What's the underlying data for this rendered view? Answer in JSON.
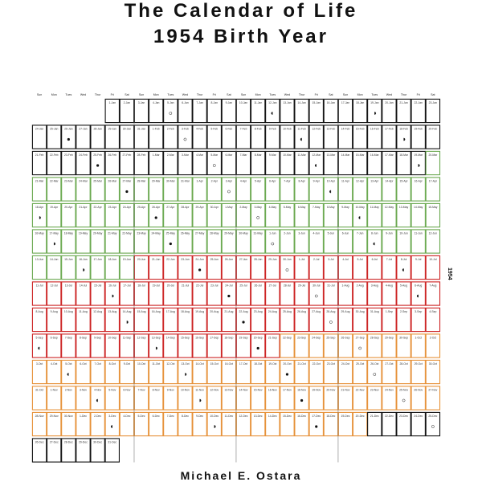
{
  "title_line_1": "The Calendar of Life",
  "title_line_2": "1954 Birth Year",
  "author": "Michael E. Ostara",
  "year_label": "1954",
  "year": 1954,
  "day_headers": [
    "Sun",
    "Mon",
    "Tues",
    "Wed",
    "Thur",
    "Fri",
    "Sat",
    "Sun",
    "Mon",
    "Tues",
    "Wed",
    "Thur",
    "Fri",
    "Sat",
    "Sun",
    "Mon",
    "Tues",
    "Wed",
    "Thur",
    "Fri",
    "Sat",
    "Sun",
    "Mon",
    "Tues",
    "Wed",
    "Thur",
    "Fri",
    "Sat"
  ],
  "month_abbr": [
    "Jan",
    "Feb",
    "Mar",
    "Apr",
    "May",
    "Jun",
    "Jul",
    "Aug",
    "Sep",
    "Oct",
    "Nov",
    "Dec"
  ],
  "season_colors": {
    "winter": "#111111",
    "spring": "#6aa84f",
    "summer": "#cc2222",
    "autumn": "#e69138"
  },
  "moon_phases": [
    {
      "date": "1954-01-05",
      "phase": "full"
    },
    {
      "date": "1954-01-12",
      "phase": "last"
    },
    {
      "date": "1954-01-19",
      "phase": "first"
    },
    {
      "date": "1954-01-26",
      "phase": "new"
    },
    {
      "date": "1954-02-03",
      "phase": "full"
    },
    {
      "date": "1954-02-11",
      "phase": "last"
    },
    {
      "date": "1954-02-18",
      "phase": "first"
    },
    {
      "date": "1954-02-25",
      "phase": "new"
    },
    {
      "date": "1954-03-05",
      "phase": "full"
    },
    {
      "date": "1954-03-12",
      "phase": "last"
    },
    {
      "date": "1954-03-19",
      "phase": "first"
    },
    {
      "date": "1954-03-27",
      "phase": "new"
    },
    {
      "date": "1954-04-03",
      "phase": "full"
    },
    {
      "date": "1954-04-10",
      "phase": "last"
    },
    {
      "date": "1954-04-18",
      "phase": "first"
    },
    {
      "date": "1954-04-26",
      "phase": "new"
    },
    {
      "date": "1954-05-03",
      "phase": "full"
    },
    {
      "date": "1954-05-10",
      "phase": "last"
    },
    {
      "date": "1954-05-17",
      "phase": "first"
    },
    {
      "date": "1954-05-25",
      "phase": "new"
    },
    {
      "date": "1954-06-01",
      "phase": "full"
    },
    {
      "date": "1954-06-08",
      "phase": "last"
    },
    {
      "date": "1954-06-16",
      "phase": "first"
    },
    {
      "date": "1954-06-24",
      "phase": "new"
    },
    {
      "date": "1954-06-30",
      "phase": "full"
    },
    {
      "date": "1954-07-08",
      "phase": "last"
    },
    {
      "date": "1954-07-16",
      "phase": "first"
    },
    {
      "date": "1954-07-24",
      "phase": "new"
    },
    {
      "date": "1954-07-30",
      "phase": "full"
    },
    {
      "date": "1954-08-06",
      "phase": "last"
    },
    {
      "date": "1954-08-14",
      "phase": "first"
    },
    {
      "date": "1954-08-22",
      "phase": "new"
    },
    {
      "date": "1954-08-28",
      "phase": "full"
    },
    {
      "date": "1954-09-05",
      "phase": "last"
    },
    {
      "date": "1954-09-13",
      "phase": "first"
    },
    {
      "date": "1954-09-20",
      "phase": "new"
    },
    {
      "date": "1954-09-27",
      "phase": "full"
    },
    {
      "date": "1954-10-05",
      "phase": "last"
    },
    {
      "date": "1954-10-13",
      "phase": "first"
    },
    {
      "date": "1954-10-20",
      "phase": "new"
    },
    {
      "date": "1954-10-26",
      "phase": "full"
    },
    {
      "date": "1954-11-04",
      "phase": "last"
    },
    {
      "date": "1954-11-11",
      "phase": "first"
    },
    {
      "date": "1954-11-18",
      "phase": "new"
    },
    {
      "date": "1954-11-25",
      "phase": "full"
    },
    {
      "date": "1954-12-03",
      "phase": "last"
    },
    {
      "date": "1954-12-10",
      "phase": "first"
    },
    {
      "date": "1954-12-17",
      "phase": "new"
    },
    {
      "date": "1954-12-25",
      "phase": "full"
    }
  ]
}
